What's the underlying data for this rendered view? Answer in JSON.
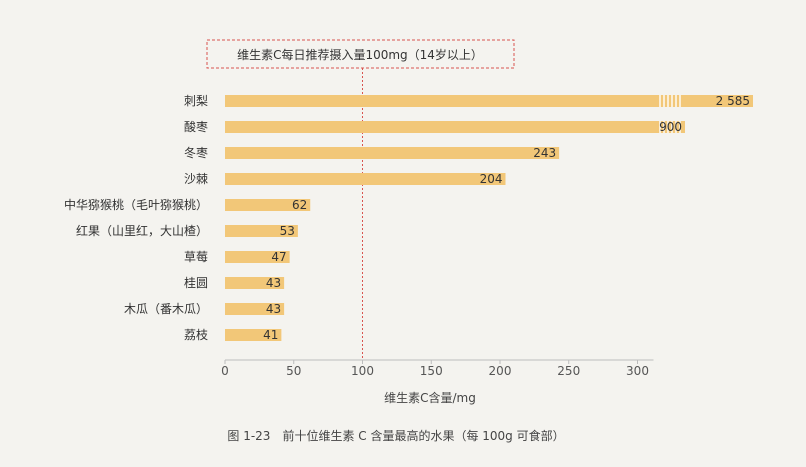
{
  "chart_data": {
    "type": "bar",
    "orientation": "horizontal",
    "categories": [
      "刺梨",
      "酸枣",
      "冬枣",
      "沙棘",
      "中华猕猴桃（毛叶猕猴桃）",
      "红果（山里红，大山楂）",
      "草莓",
      "桂圆",
      "木瓜（番木瓜）",
      "荔枝"
    ],
    "values": [
      2585,
      900,
      243,
      204,
      62,
      53,
      47,
      43,
      43,
      41
    ],
    "value_labels": [
      "2 585",
      "900",
      "243",
      "204",
      "62",
      "53",
      "47",
      "43",
      "43",
      "41"
    ],
    "truncated": [
      true,
      true,
      false,
      false,
      false,
      false,
      false,
      false,
      false,
      false
    ],
    "xlim": [
      0,
      300
    ],
    "xticks": [
      0,
      50,
      100,
      150,
      200,
      250,
      300
    ],
    "xlabel": "维生素C含量/mg",
    "reference_line": {
      "value": 100,
      "label": "维生素C每日推荐摄入量100mg（14岁以上）"
    },
    "bar_color": "#f2c778",
    "caption": "图 1-23　前十位维生素 C 含量最高的水果（每 100g 可食部）"
  }
}
